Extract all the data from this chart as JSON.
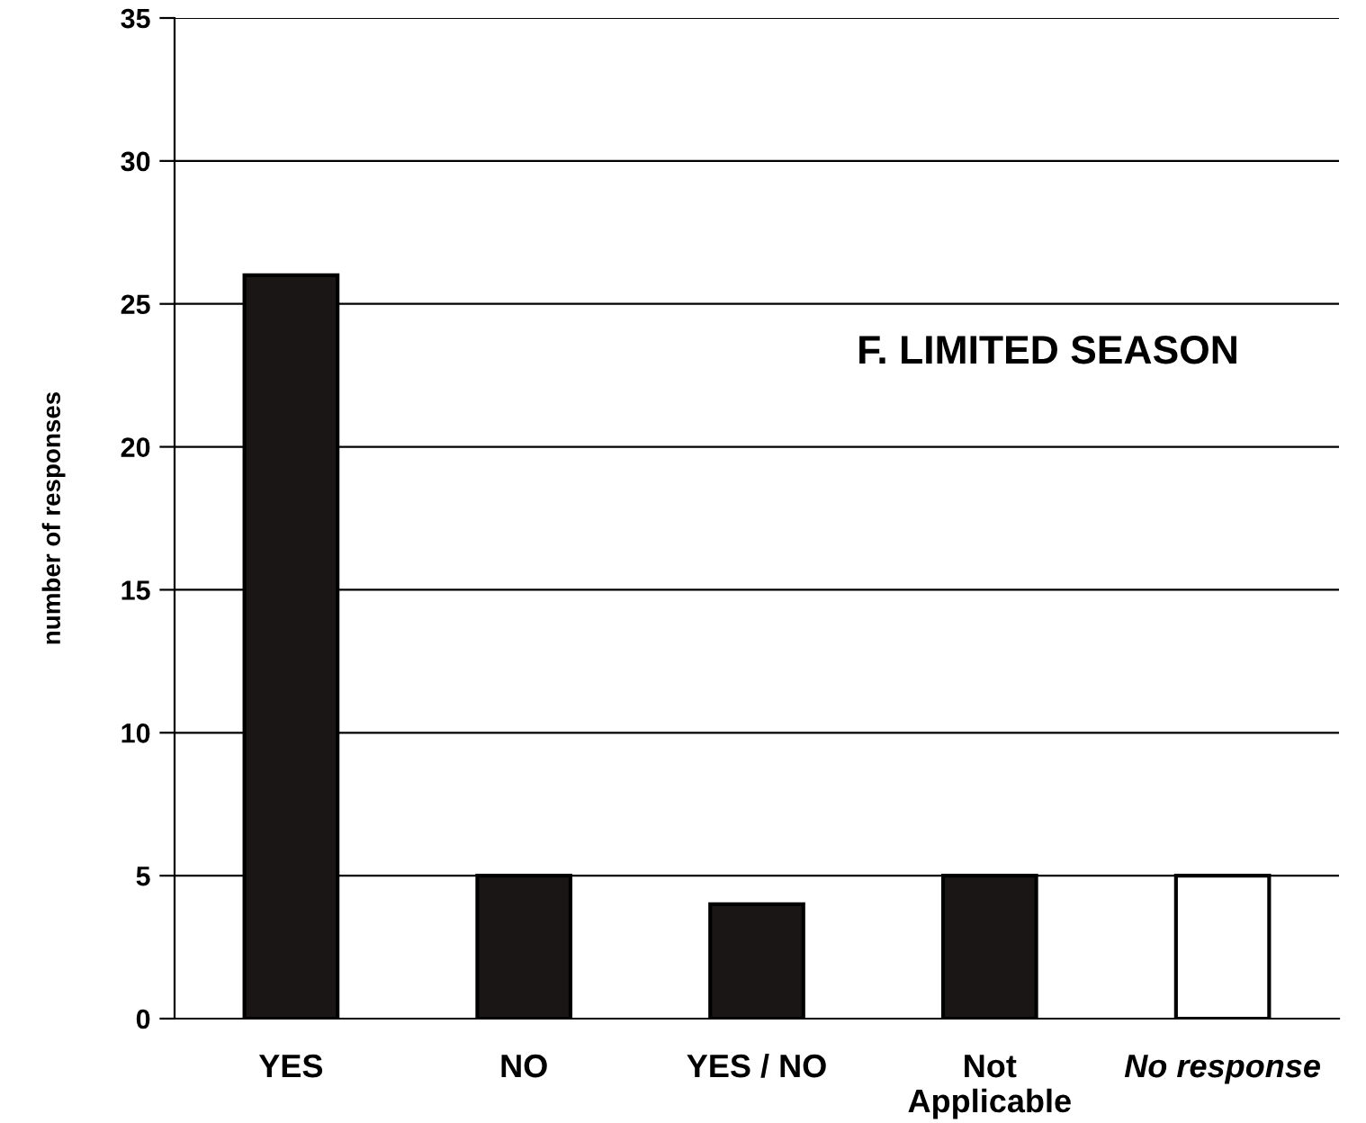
{
  "chart_data": {
    "type": "bar",
    "title": "F. LIMITED SEASON",
    "ylabel": "number of responses",
    "categories": [
      "YES",
      "NO",
      "YES / NO",
      "Not\nApplicable",
      "No response"
    ],
    "values": [
      26,
      5,
      4,
      5,
      5
    ],
    "colors": [
      "#1a1616",
      "#1a1616",
      "#1a1616",
      "#1a1616",
      "#ffffff"
    ],
    "ylim": [
      0,
      35
    ],
    "yticks": [
      0,
      5,
      10,
      15,
      20,
      25,
      30,
      35
    ],
    "grid": "y"
  }
}
